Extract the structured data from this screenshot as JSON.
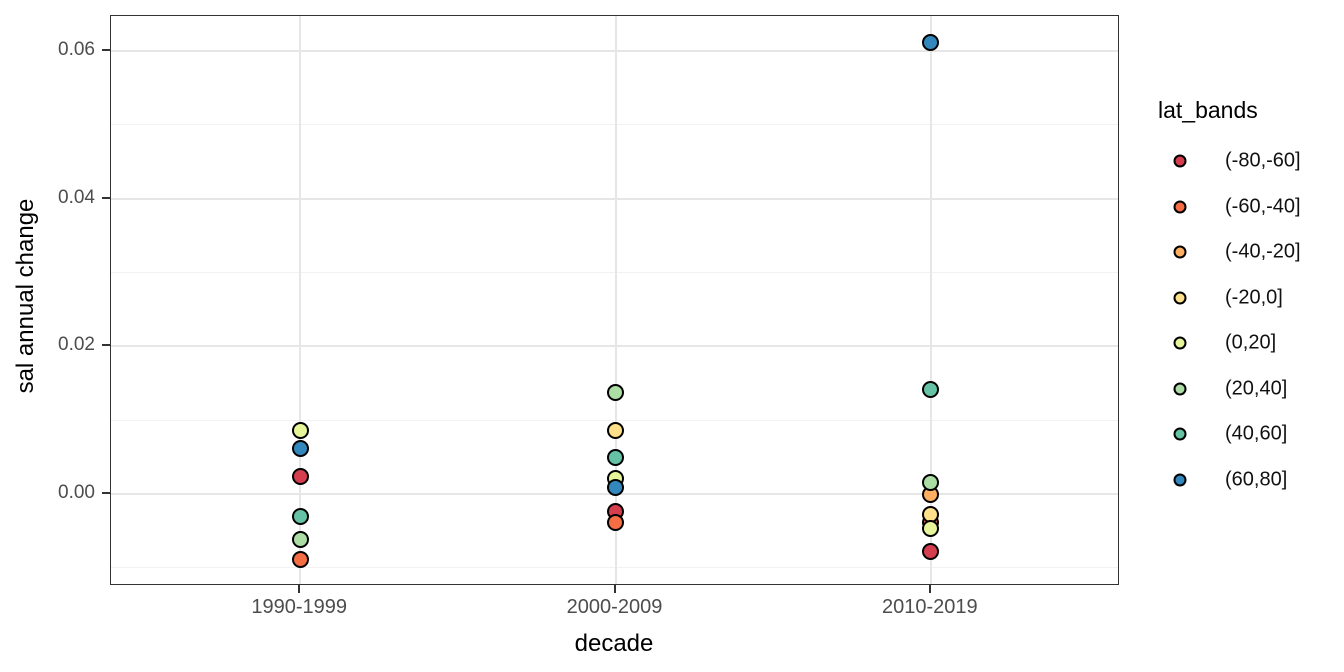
{
  "figure": {
    "background": "#ffffff"
  },
  "chart_data": {
    "type": "scatter",
    "title": "",
    "xlabel": "decade",
    "ylabel": "sal annual change",
    "categories": [
      "1990-1999",
      "2000-2009",
      "2010-2019"
    ],
    "y_axis": {
      "ticks": [
        0.0,
        0.02,
        0.04,
        0.06
      ],
      "tick_labels": [
        "0.00",
        "0.02",
        "0.04",
        "0.06"
      ],
      "minor_ticks": [
        -0.01,
        0.01,
        0.03,
        0.05
      ],
      "range": [
        -0.01239,
        0.06474
      ]
    },
    "grid": true,
    "point_stroke": "#000000",
    "legend": {
      "title": "lat_bands",
      "position": "right",
      "entries": [
        {
          "label": "(-80,-60]",
          "color": "#D53E4F"
        },
        {
          "label": "(-60,-40]",
          "color": "#F46D43"
        },
        {
          "label": "(-40,-20]",
          "color": "#FDAE61"
        },
        {
          "label": "(-20,0]",
          "color": "#FEE08B"
        },
        {
          "label": "(0,20]",
          "color": "#E6F598"
        },
        {
          "label": "(20,40]",
          "color": "#ABDDA4"
        },
        {
          "label": "(40,60]",
          "color": "#66C2A5"
        },
        {
          "label": "(60,80]",
          "color": "#3288BD"
        }
      ]
    },
    "series": [
      {
        "name": "(-80,-60]",
        "color": "#D53E4F",
        "points": [
          {
            "x": "1990-1999",
            "y": 0.0024
          },
          {
            "x": "2000-2009",
            "y": -0.0024
          },
          {
            "x": "2010-2019",
            "y": -0.0078
          }
        ]
      },
      {
        "name": "(-60,-40]",
        "color": "#F46D43",
        "points": [
          {
            "x": "1990-1999",
            "y": -0.0089
          },
          {
            "x": "2000-2009",
            "y": -0.0038
          },
          {
            "x": "2010-2019",
            "y": -0.0038
          }
        ]
      },
      {
        "name": "(-40,-20]",
        "color": "#FDAE61",
        "points": [
          {
            "x": "2010-2019",
            "y": 0.0
          }
        ]
      },
      {
        "name": "(-20,0]",
        "color": "#FEE08B",
        "points": [
          {
            "x": "2000-2009",
            "y": 0.0086
          },
          {
            "x": "2010-2019",
            "y": -0.0028
          }
        ]
      },
      {
        "name": "(0,20]",
        "color": "#E6F598",
        "points": [
          {
            "x": "1990-1999",
            "y": 0.0086
          },
          {
            "x": "2000-2009",
            "y": 0.0021
          },
          {
            "x": "2010-2019",
            "y": -0.0047
          }
        ]
      },
      {
        "name": "(20,40]",
        "color": "#ABDDA4",
        "points": [
          {
            "x": "1990-1999",
            "y": -0.0061
          },
          {
            "x": "2000-2009",
            "y": 0.0138
          },
          {
            "x": "2010-2019",
            "y": 0.0015
          }
        ]
      },
      {
        "name": "(40,60]",
        "color": "#66C2A5",
        "points": [
          {
            "x": "1990-1999",
            "y": -0.0031
          },
          {
            "x": "2000-2009",
            "y": 0.0049
          },
          {
            "x": "2010-2019",
            "y": 0.0141
          }
        ]
      },
      {
        "name": "(60,80]",
        "color": "#3288BD",
        "points": [
          {
            "x": "1990-1999",
            "y": 0.0061
          },
          {
            "x": "2000-2009",
            "y": 0.0009
          },
          {
            "x": "2010-2019",
            "y": 0.0611
          }
        ]
      }
    ]
  }
}
